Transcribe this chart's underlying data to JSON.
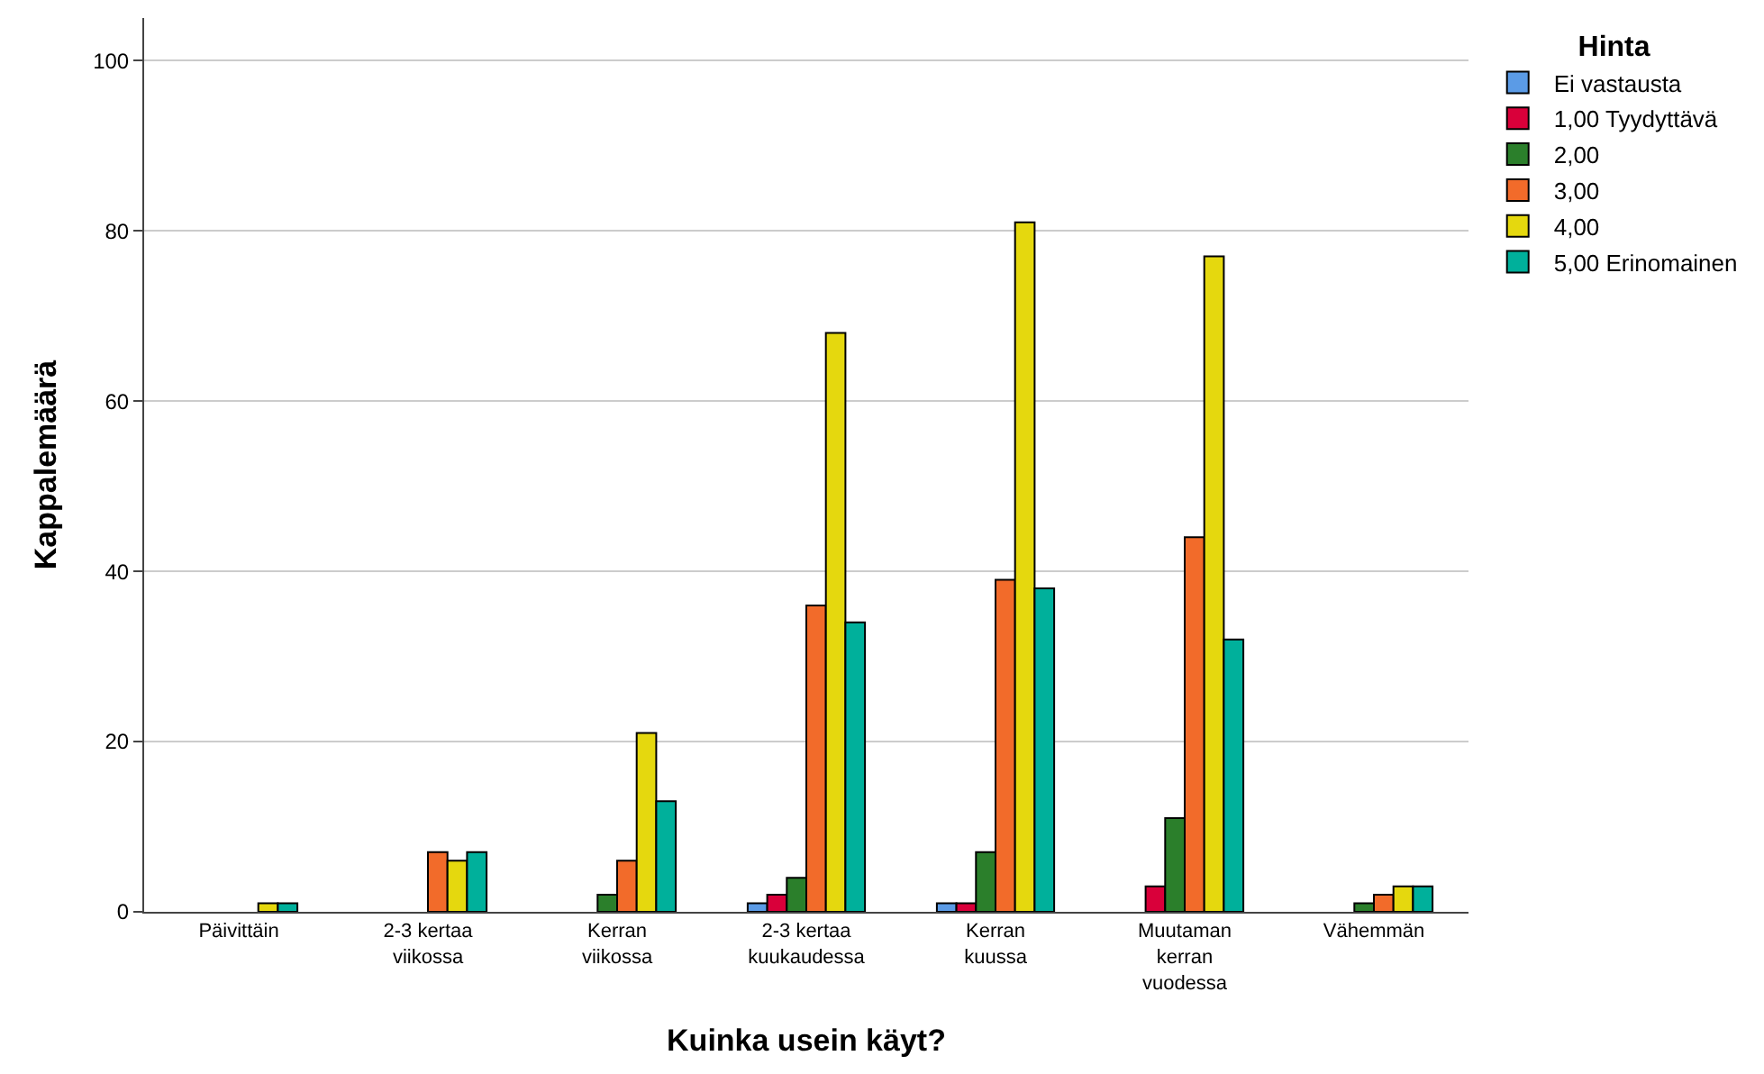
{
  "chart_data": {
    "type": "bar",
    "xlabel": "Kuinka usein käyt?",
    "ylabel": "Kappalemäärä",
    "legend_title": "Hinta",
    "categories": [
      "Päivittäin",
      "2-3 kertaa\nviikossa",
      "Kerran\nviikossa",
      "2-3 kertaa\nkuukaudessa",
      "Kerran\nkuussa",
      "Muutaman\nkerran\nvuodessa",
      "Vähemmän"
    ],
    "series": [
      {
        "name": "Ei vastausta",
        "color": "#5b9be6",
        "values": [
          null,
          null,
          null,
          1,
          1,
          null,
          null
        ]
      },
      {
        "name": "1,00 Tyydyttävä",
        "color": "#d9003a",
        "values": [
          null,
          null,
          null,
          2,
          1,
          3,
          null
        ]
      },
      {
        "name": "2,00",
        "color": "#2b7f2b",
        "values": [
          null,
          null,
          2,
          4,
          7,
          11,
          1
        ]
      },
      {
        "name": "3,00",
        "color": "#f26b2a",
        "values": [
          null,
          7,
          6,
          36,
          39,
          44,
          2
        ]
      },
      {
        "name": "4,00",
        "color": "#e5d80e",
        "values": [
          1,
          6,
          21,
          68,
          81,
          77,
          3
        ]
      },
      {
        "name": "5,00 Erinomainen",
        "color": "#00b09b",
        "values": [
          1,
          7,
          13,
          34,
          38,
          32,
          3
        ]
      }
    ],
    "ylim": [
      0,
      105
    ],
    "yticks": [
      0,
      20,
      40,
      60,
      80,
      100
    ],
    "grid": "y",
    "legend": "top right"
  }
}
